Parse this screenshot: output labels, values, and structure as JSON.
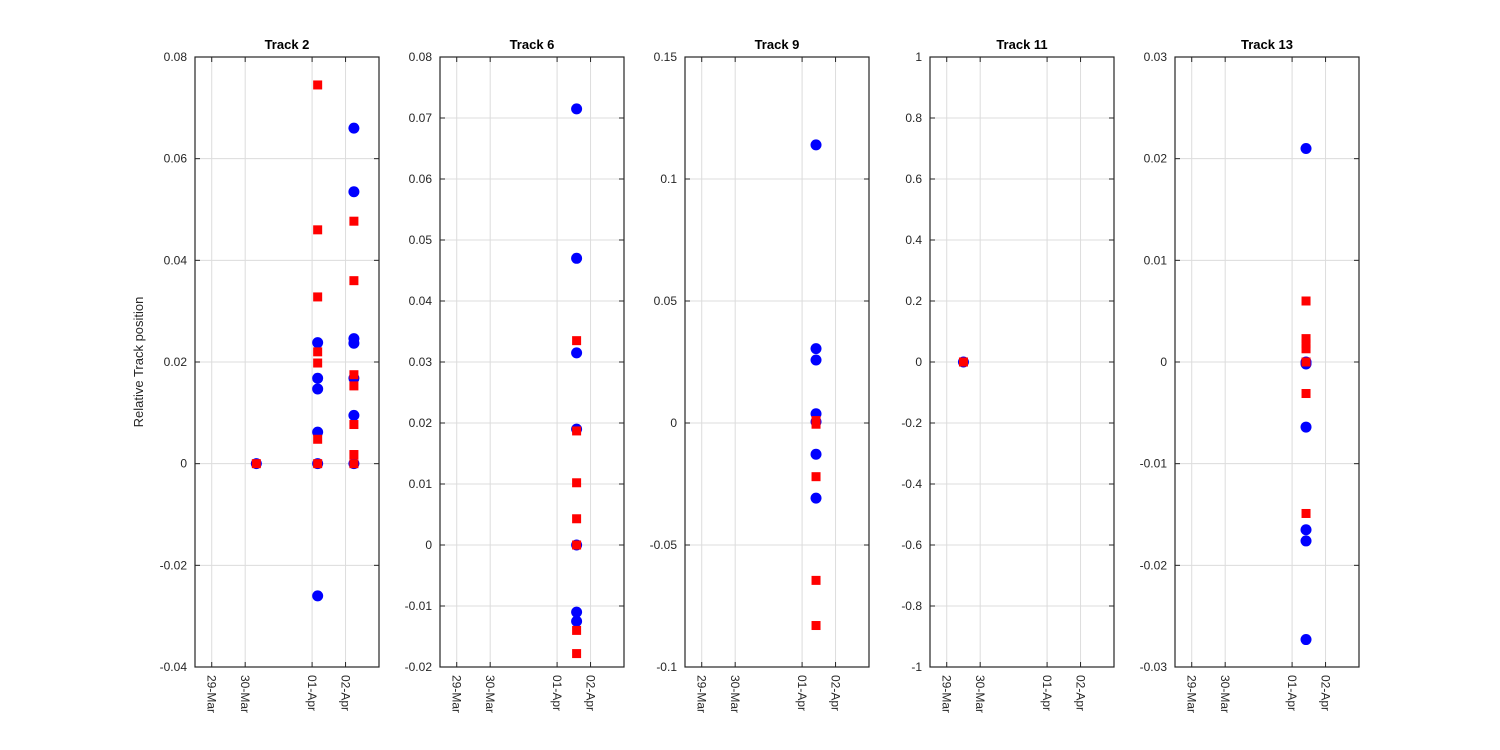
{
  "chart_data": {
    "type": "scatter",
    "ylabel": "Relative Track position",
    "x_ticks": [
      "29-Mar",
      "30-Mar",
      "01-Apr",
      "02-Apr"
    ],
    "x_tick_values": [
      "2016-03-29",
      "2016-03-30",
      "2016-04-01",
      "2016-04-02"
    ],
    "xlim": [
      "2016-03-28 12:00",
      "2016-04-03 00:00"
    ],
    "grid": true,
    "colors": {
      "blue": "#0000ff",
      "red": "#ff0000"
    },
    "panels": [
      {
        "title": "Track 2",
        "ylim": [
          -0.04,
          0.08
        ],
        "y_ticks": [
          -0.04,
          -0.02,
          0,
          0.02,
          0.04,
          0.06,
          0.08
        ],
        "y_tick_labels": [
          "-0.04",
          "-0.02",
          "0",
          "0.02",
          "0.04",
          "0.06",
          "0.08"
        ],
        "series": [
          {
            "marker": "circle",
            "color": "#0000ff",
            "points": [
              [
                "2016-03-30 08:00",
                0
              ],
              [
                "2016-04-01 04:00",
                0.0238
              ],
              [
                "2016-04-01 04:00",
                0.0168
              ],
              [
                "2016-04-01 04:00",
                0.0147
              ],
              [
                "2016-04-01 04:00",
                0.0062
              ],
              [
                "2016-04-01 04:00",
                0
              ],
              [
                "2016-04-01 04:00",
                -0.026
              ],
              [
                "2016-04-02 06:00",
                0.066
              ],
              [
                "2016-04-02 06:00",
                0.0535
              ],
              [
                "2016-04-02 06:00",
                0.0246
              ],
              [
                "2016-04-02 06:00",
                0.0237
              ],
              [
                "2016-04-02 06:00",
                0.0168
              ],
              [
                "2016-04-02 06:00",
                0.0095
              ],
              [
                "2016-04-02 06:00",
                0
              ]
            ]
          },
          {
            "marker": "square",
            "color": "#ff0000",
            "points": [
              [
                "2016-03-30 08:00",
                0
              ],
              [
                "2016-04-01 04:00",
                0.0745
              ],
              [
                "2016-04-01 04:00",
                0.046
              ],
              [
                "2016-04-01 04:00",
                0.0328
              ],
              [
                "2016-04-01 04:00",
                0.022
              ],
              [
                "2016-04-01 04:00",
                0.0198
              ],
              [
                "2016-04-01 04:00",
                0.0048
              ],
              [
                "2016-04-01 04:00",
                0
              ],
              [
                "2016-04-02 06:00",
                0.0477
              ],
              [
                "2016-04-02 06:00",
                0.036
              ],
              [
                "2016-04-02 06:00",
                0.0175
              ],
              [
                "2016-04-02 06:00",
                0.0153
              ],
              [
                "2016-04-02 06:00",
                0.0077
              ],
              [
                "2016-04-02 06:00",
                0.0018
              ],
              [
                "2016-04-02 06:00",
                0
              ]
            ]
          }
        ]
      },
      {
        "title": "Track 6",
        "ylim": [
          -0.02,
          0.08
        ],
        "y_ticks": [
          -0.02,
          -0.01,
          0,
          0.01,
          0.02,
          0.03,
          0.04,
          0.05,
          0.06,
          0.07,
          0.08
        ],
        "y_tick_labels": [
          "-0.02",
          "-0.01",
          "0",
          "0.01",
          "0.02",
          "0.03",
          "0.04",
          "0.05",
          "0.06",
          "0.07",
          "0.08"
        ],
        "series": [
          {
            "marker": "circle",
            "color": "#0000ff",
            "points": [
              [
                "2016-04-01 14:00",
                0.0715
              ],
              [
                "2016-04-01 14:00",
                0.047
              ],
              [
                "2016-04-01 14:00",
                0.0315
              ],
              [
                "2016-04-01 14:00",
                0.019
              ],
              [
                "2016-04-01 14:00",
                0
              ],
              [
                "2016-04-01 14:00",
                -0.011
              ],
              [
                "2016-04-01 14:00",
                -0.0125
              ]
            ]
          },
          {
            "marker": "square",
            "color": "#ff0000",
            "points": [
              [
                "2016-04-01 14:00",
                0.0335
              ],
              [
                "2016-04-01 14:00",
                0.0187
              ],
              [
                "2016-04-01 14:00",
                0.0102
              ],
              [
                "2016-04-01 14:00",
                0.0043
              ],
              [
                "2016-04-01 14:00",
                0
              ],
              [
                "2016-04-01 14:00",
                -0.014
              ],
              [
                "2016-04-01 14:00",
                -0.0178
              ]
            ]
          }
        ]
      },
      {
        "title": "Track 9",
        "ylim": [
          -0.1,
          0.15
        ],
        "y_ticks": [
          -0.1,
          -0.05,
          0,
          0.05,
          0.1,
          0.15
        ],
        "y_tick_labels": [
          "-0.1",
          "-0.05",
          "0",
          "0.05",
          "0.1",
          "0.15"
        ],
        "series": [
          {
            "marker": "circle",
            "color": "#0000ff",
            "points": [
              [
                "2016-04-01 10:00",
                0.114
              ],
              [
                "2016-04-01 10:00",
                0.0305
              ],
              [
                "2016-04-01 10:00",
                0.0258
              ],
              [
                "2016-04-01 10:00",
                0.0038
              ],
              [
                "2016-04-01 10:00",
                0.0005
              ],
              [
                "2016-04-01 10:00",
                -0.0128
              ],
              [
                "2016-04-01 10:00",
                -0.0308
              ]
            ]
          },
          {
            "marker": "square",
            "color": "#ff0000",
            "points": [
              [
                "2016-04-01 10:00",
                0.001
              ],
              [
                "2016-04-01 10:00",
                -0.0005
              ],
              [
                "2016-04-01 10:00",
                -0.022
              ],
              [
                "2016-04-01 10:00",
                -0.0645
              ],
              [
                "2016-04-01 10:00",
                -0.083
              ]
            ]
          }
        ]
      },
      {
        "title": "Track 11",
        "ylim": [
          -1,
          1
        ],
        "y_ticks": [
          -1,
          -0.8,
          -0.6,
          -0.4,
          -0.2,
          0,
          0.2,
          0.4,
          0.6,
          0.8,
          1
        ],
        "y_tick_labels": [
          "-1",
          "-0.8",
          "-0.6",
          "-0.4",
          "-0.2",
          "0",
          "0.2",
          "0.4",
          "0.6",
          "0.8",
          "1"
        ],
        "series": [
          {
            "marker": "circle",
            "color": "#0000ff",
            "points": [
              [
                "2016-03-29 12:00",
                0
              ]
            ]
          },
          {
            "marker": "square",
            "color": "#ff0000",
            "points": [
              [
                "2016-03-29 12:00",
                0
              ]
            ]
          }
        ]
      },
      {
        "title": "Track 13",
        "ylim": [
          -0.03,
          0.03
        ],
        "y_ticks": [
          -0.03,
          -0.02,
          -0.01,
          0,
          0.01,
          0.02,
          0.03
        ],
        "y_tick_labels": [
          "-0.03",
          "-0.02",
          "-0.01",
          "0",
          "0.01",
          "0.02",
          "0.03"
        ],
        "series": [
          {
            "marker": "circle",
            "color": "#0000ff",
            "points": [
              [
                "2016-04-01 10:00",
                0.021
              ],
              [
                "2016-04-01 10:00",
                0
              ],
              [
                "2016-04-01 10:00",
                -0.0002
              ],
              [
                "2016-04-01 10:00",
                -0.0064
              ],
              [
                "2016-04-01 10:00",
                -0.0165
              ],
              [
                "2016-04-01 10:00",
                -0.0176
              ],
              [
                "2016-04-01 10:00",
                -0.0273
              ]
            ]
          },
          {
            "marker": "square",
            "color": "#ff0000",
            "points": [
              [
                "2016-04-01 10:00",
                0.006
              ],
              [
                "2016-04-01 10:00",
                0.0023
              ],
              [
                "2016-04-01 10:00",
                0.0018
              ],
              [
                "2016-04-01 10:00",
                0.0013
              ],
              [
                "2016-04-01 10:00",
                0
              ],
              [
                "2016-04-01 10:00",
                -0.0031
              ],
              [
                "2016-04-01 10:00",
                -0.0149
              ]
            ]
          }
        ]
      }
    ]
  }
}
